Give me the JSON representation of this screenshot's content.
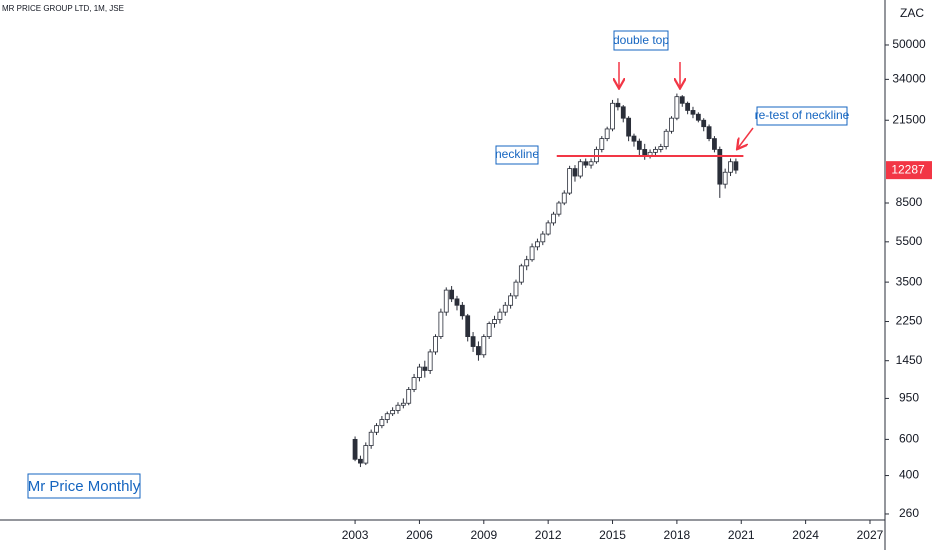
{
  "chart_data": {
    "type": "candlestick",
    "title": "MR PRICE GROUP LTD, 1M, JSE",
    "currency": "ZAC",
    "log_scale": true,
    "xlim": [
      1986.45,
      2027.7
    ],
    "xticks": [
      2003,
      2006,
      2009,
      2012,
      2015,
      2018,
      2021,
      2024,
      2027
    ],
    "ylim": [
      243,
      82800
    ],
    "yticks": [
      260,
      400,
      600,
      950,
      1450,
      2250,
      3500,
      5500,
      8500,
      21500,
      34000,
      50000
    ],
    "up_color": "#ffffff",
    "down_color": "#2a2e39",
    "x": [
      2003,
      2003.25,
      2003.5,
      2003.75,
      2004,
      2004.25,
      2004.5,
      2004.75,
      2005,
      2005.25,
      2005.5,
      2005.75,
      2006,
      2006.25,
      2006.5,
      2006.75,
      2007,
      2007.25,
      2007.5,
      2007.75,
      2008,
      2008.25,
      2008.5,
      2008.75,
      2009,
      2009.25,
      2009.5,
      2009.75,
      2010,
      2010.25,
      2010.5,
      2010.75,
      2011,
      2011.25,
      2011.5,
      2011.75,
      2012,
      2012.25,
      2012.5,
      2012.75,
      2013,
      2013.25,
      2013.5,
      2013.75,
      2014,
      2014.25,
      2014.5,
      2014.75,
      2015,
      2015.25,
      2015.5,
      2015.75,
      2016,
      2016.25,
      2016.5,
      2016.75,
      2017,
      2017.25,
      2017.5,
      2017.75,
      2018,
      2018.25,
      2018.5,
      2018.75,
      2019,
      2019.25,
      2019.5,
      2019.75,
      2020,
      2020.25,
      2020.5,
      2020.75
    ],
    "ohlc": [
      [
        600,
        620,
        470,
        480
      ],
      [
        480,
        500,
        440,
        460
      ],
      [
        460,
        580,
        450,
        560
      ],
      [
        560,
        670,
        540,
        650
      ],
      [
        650,
        720,
        630,
        700
      ],
      [
        700,
        780,
        680,
        750
      ],
      [
        750,
        820,
        720,
        800
      ],
      [
        800,
        860,
        780,
        830
      ],
      [
        830,
        910,
        800,
        880
      ],
      [
        880,
        950,
        850,
        900
      ],
      [
        900,
        1080,
        880,
        1050
      ],
      [
        1050,
        1250,
        1020,
        1200
      ],
      [
        1200,
        1400,
        1150,
        1350
      ],
      [
        1350,
        1450,
        1200,
        1300
      ],
      [
        1300,
        1650,
        1250,
        1600
      ],
      [
        1600,
        1950,
        1550,
        1900
      ],
      [
        1900,
        2600,
        1850,
        2500
      ],
      [
        2500,
        3300,
        2400,
        3200
      ],
      [
        3200,
        3350,
        2800,
        2900
      ],
      [
        2900,
        3000,
        2550,
        2700
      ],
      [
        2700,
        2800,
        2300,
        2400
      ],
      [
        2400,
        2450,
        1800,
        1900
      ],
      [
        1900,
        2000,
        1600,
        1700
      ],
      [
        1700,
        1800,
        1450,
        1550
      ],
      [
        1550,
        1950,
        1500,
        1900
      ],
      [
        1900,
        2250,
        1850,
        2200
      ],
      [
        2200,
        2400,
        2100,
        2300
      ],
      [
        2300,
        2600,
        2200,
        2500
      ],
      [
        2500,
        2800,
        2400,
        2700
      ],
      [
        2700,
        3100,
        2600,
        3000
      ],
      [
        3000,
        3600,
        2900,
        3500
      ],
      [
        3500,
        4300,
        3400,
        4200
      ],
      [
        4200,
        4700,
        4000,
        4500
      ],
      [
        4500,
        5400,
        4400,
        5200
      ],
      [
        5200,
        5700,
        5000,
        5500
      ],
      [
        5500,
        6200,
        5300,
        6000
      ],
      [
        6000,
        7000,
        5900,
        6800
      ],
      [
        6800,
        7700,
        6600,
        7500
      ],
      [
        7500,
        8700,
        7300,
        8500
      ],
      [
        8500,
        9800,
        8300,
        9500
      ],
      [
        9500,
        12900,
        9300,
        12500
      ],
      [
        12500,
        13000,
        10800,
        11500
      ],
      [
        11500,
        13900,
        11200,
        13500
      ],
      [
        13500,
        14000,
        12600,
        13000
      ],
      [
        13000,
        14000,
        12500,
        13500
      ],
      [
        13500,
        16000,
        13200,
        15500
      ],
      [
        15500,
        18000,
        15000,
        17500
      ],
      [
        17500,
        20000,
        17000,
        19500
      ],
      [
        19500,
        27000,
        19000,
        26000
      ],
      [
        26000,
        27500,
        24000,
        25000
      ],
      [
        25000,
        25500,
        21000,
        22000
      ],
      [
        22000,
        22500,
        17000,
        18000
      ],
      [
        18000,
        18500,
        16000,
        17000
      ],
      [
        17000,
        17500,
        14500,
        15500
      ],
      [
        15500,
        16500,
        13800,
        14500
      ],
      [
        14500,
        15500,
        14000,
        15000
      ],
      [
        15000,
        16000,
        14500,
        15500
      ],
      [
        15500,
        16500,
        15000,
        16000
      ],
      [
        16000,
        19500,
        15500,
        19000
      ],
      [
        19000,
        22500,
        18500,
        22000
      ],
      [
        22000,
        29000,
        21500,
        28000
      ],
      [
        28000,
        28500,
        25000,
        26000
      ],
      [
        26000,
        26500,
        23000,
        24000
      ],
      [
        24000,
        25000,
        22000,
        23000
      ],
      [
        23000,
        23500,
        21000,
        21500
      ],
      [
        21500,
        22000,
        19000,
        20000
      ],
      [
        20000,
        20500,
        17000,
        17500
      ],
      [
        17500,
        18000,
        15000,
        15500
      ],
      [
        15500,
        16000,
        9000,
        10500
      ],
      [
        10500,
        12500,
        10000,
        12000
      ],
      [
        12000,
        14000,
        11500,
        13500
      ],
      [
        13500,
        14000,
        11800,
        12287
      ]
    ],
    "neckline": {
      "value": 14400,
      "x": [
        2012.4,
        2021.1
      ],
      "color": "#f23645"
    },
    "annotations": {
      "double_top": "double top",
      "neckline": "neckline",
      "retest": "re-test of neckline",
      "caption": "Mr Price Monthly"
    }
  }
}
